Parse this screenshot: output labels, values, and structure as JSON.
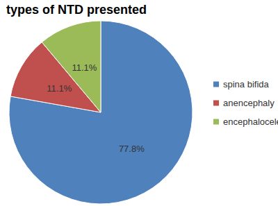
{
  "chart_data": {
    "type": "pie",
    "title": "types of NTD presented",
    "categories": [
      "spina bifida",
      "anencephaly",
      "encephalocele"
    ],
    "values": [
      77.8,
      11.1,
      11.1
    ],
    "value_labels": [
      "77.8%",
      "11.1%",
      "11.1%"
    ],
    "colors": [
      "#4f81bd",
      "#c0504d",
      "#9bbb59"
    ],
    "legend": "right",
    "data_labels": true
  }
}
